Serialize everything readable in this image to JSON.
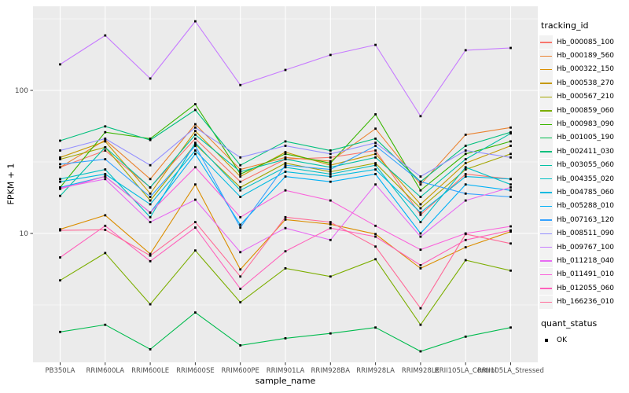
{
  "style": {
    "panel_bg": "#EBEBEB",
    "grid_color": "#FFFFFF",
    "axis_text_color": "#4D4D4D",
    "tick_color": "#333333",
    "point_color": "#000000",
    "legend_key_bg": "#F2F2F2"
  },
  "chart_data": {
    "type": "line",
    "title": "",
    "xlabel": "sample_name",
    "ylabel": "FPKM + 1",
    "yscale": "log10",
    "ylim": [
      1.25,
      390
    ],
    "yticks": [
      10,
      100
    ],
    "ytick_labels": [
      "10",
      "100"
    ],
    "minor_yticks": [
      3.162,
      31.62,
      316.2
    ],
    "grid": true,
    "legend_position": "right",
    "legend_title": "tracking_id",
    "point_shape": "square",
    "x": [
      "PB350LA",
      "RRIM600LA",
      "RRIM600LE",
      "RRIM600SE",
      "RRIM600PE",
      "RRIM901LA",
      "RRIM928BA",
      "RRIM928LA",
      "RRIM928LE",
      "RRII105LA_Control",
      "RRII105LA_Stressed"
    ],
    "series": [
      {
        "name": "Hb_000085_100",
        "color": "#F8766D",
        "values": [
          29,
          38,
          21,
          46,
          23,
          33,
          34,
          38,
          13.5,
          26,
          24
        ]
      },
      {
        "name": "Hb_000189_560",
        "color": "#EA8331",
        "values": [
          29,
          45,
          24,
          58,
          28,
          34,
          32,
          54,
          22,
          49,
          55
        ]
      },
      {
        "name": "Hb_000322_150",
        "color": "#DB8E00",
        "values": [
          10.7,
          13.4,
          7.2,
          22,
          5.6,
          12.5,
          11.6,
          9.9,
          5.7,
          8,
          10.3
        ]
      },
      {
        "name": "Hb_000538_270",
        "color": "#C59900",
        "values": [
          34,
          44,
          19,
          52,
          25,
          37,
          30,
          36,
          16,
          31,
          41
        ]
      },
      {
        "name": "Hb_000567_210",
        "color": "#A3A500",
        "values": [
          33,
          40,
          17,
          42,
          21,
          31,
          27,
          31,
          15,
          28,
          36
        ]
      },
      {
        "name": "Hb_000859_060",
        "color": "#7CAE00",
        "values": [
          4.7,
          7.3,
          3.2,
          7.6,
          3.3,
          5.7,
          5,
          6.6,
          2.3,
          6.5,
          5.5
        ]
      },
      {
        "name": "Hb_000983_090",
        "color": "#39B600",
        "values": [
          21,
          51,
          46,
          80,
          26,
          36,
          31,
          68,
          20,
          36,
          44
        ]
      },
      {
        "name": "Hb_001005_190",
        "color": "#00BB4E",
        "values": [
          2.05,
          2.3,
          1.55,
          2.8,
          1.65,
          1.85,
          2,
          2.2,
          1.5,
          1.9,
          2.2
        ]
      },
      {
        "name": "Hb_002411_030",
        "color": "#00BF7D",
        "values": [
          44.5,
          56,
          45,
          73,
          30,
          44,
          38,
          46,
          23,
          41,
          51
        ]
      },
      {
        "name": "Hb_003055_060",
        "color": "#00C1A3",
        "values": [
          18.3,
          40,
          21,
          49,
          27,
          33,
          29,
          34,
          18,
          33,
          50
        ]
      },
      {
        "name": "Hb_004355_020",
        "color": "#00BFC4",
        "values": [
          24,
          28,
          13,
          43,
          20,
          29,
          26,
          30,
          12,
          29,
          22
        ]
      },
      {
        "name": "Hb_004785_060",
        "color": "#00BAE0",
        "values": [
          23,
          26,
          16,
          38,
          18,
          27,
          25,
          28,
          14,
          25,
          24
        ]
      },
      {
        "name": "Hb_005288_010",
        "color": "#00B0F6",
        "values": [
          21,
          25,
          14,
          36,
          11.5,
          25,
          23,
          26,
          10,
          22,
          20
        ]
      },
      {
        "name": "Hb_007163_120",
        "color": "#35A2FF",
        "values": [
          30.5,
          33,
          18,
          41,
          11,
          30,
          28,
          41,
          23,
          19,
          18
        ]
      },
      {
        "name": "Hb_008511_090",
        "color": "#9590FF",
        "values": [
          38,
          46,
          30,
          55,
          34,
          41,
          36,
          43,
          25,
          38,
          34
        ]
      },
      {
        "name": "Hb_009767_100",
        "color": "#C77CFF",
        "values": [
          152,
          242,
          121,
          304,
          109,
          139,
          177,
          208,
          66,
          191,
          198
        ]
      },
      {
        "name": "Hb_011218_040",
        "color": "#E76BF3",
        "values": [
          20.8,
          24,
          12,
          17.2,
          7.4,
          10.9,
          9,
          22,
          9.5,
          17,
          21
        ]
      },
      {
        "name": "Hb_011491_010",
        "color": "#FA62DB",
        "values": [
          20.5,
          25,
          14,
          29,
          13,
          20,
          17,
          11.3,
          7.7,
          10,
          11.2
        ]
      },
      {
        "name": "Hb_012055_060",
        "color": "#FF62BC",
        "values": [
          6.8,
          11.3,
          6.4,
          11,
          4.1,
          7.5,
          10.9,
          9.5,
          6,
          9,
          10.5
        ]
      },
      {
        "name": "Hb_166236_010",
        "color": "#FF6A98",
        "values": [
          10.5,
          10.6,
          7,
          12,
          5,
          13,
          12,
          8.1,
          3,
          9.9,
          8.5
        ]
      }
    ],
    "quant_status": {
      "title": "quant_status",
      "entries": [
        {
          "label": "OK",
          "shape": "square",
          "color": "#000000"
        }
      ]
    }
  }
}
